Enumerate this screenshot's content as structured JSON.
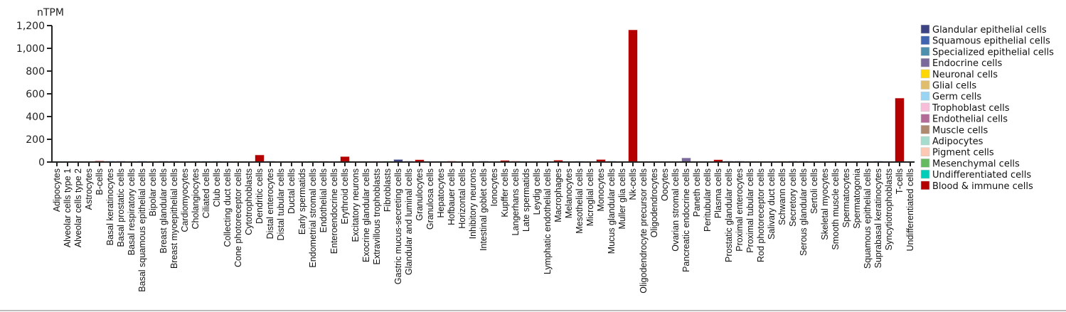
{
  "chart_data": {
    "type": "bar",
    "ylabel": "nTPM",
    "ylim": [
      0,
      1200
    ],
    "yticks": [
      0,
      200,
      400,
      600,
      800,
      1000,
      1200
    ],
    "ytick_labels": [
      "0",
      "200",
      "400",
      "600",
      "800",
      "1,000",
      "1,200"
    ],
    "grid": false,
    "legend_position": "right",
    "legend": [
      {
        "name": "Glandular epithelial cells",
        "color": "#3d4383"
      },
      {
        "name": "Squamous epithelial cells",
        "color": "#4064b0"
      },
      {
        "name": "Specialized epithelial cells",
        "color": "#4e8fad"
      },
      {
        "name": "Endocrine cells",
        "color": "#7a6a9c"
      },
      {
        "name": "Neuronal cells",
        "color": "#ffd700"
      },
      {
        "name": "Glial cells",
        "color": "#e0bd6c"
      },
      {
        "name": "Germ cells",
        "color": "#99d4f2"
      },
      {
        "name": "Trophoblast cells",
        "color": "#f7bdd9"
      },
      {
        "name": "Endothelial cells",
        "color": "#b36b98"
      },
      {
        "name": "Muscle cells",
        "color": "#b08a70"
      },
      {
        "name": "Adipocytes",
        "color": "#a6dcce"
      },
      {
        "name": "Pigment cells",
        "color": "#fdc9b5"
      },
      {
        "name": "Mesenchymal cells",
        "color": "#66bb62"
      },
      {
        "name": "Undifferentiated cells",
        "color": "#00cdb8"
      },
      {
        "name": "Blood & immune cells",
        "color": "#b50000"
      }
    ],
    "categories": [
      "Adipocytes",
      "Alveolar cells type 1",
      "Alveolar cells type 2",
      "Astrocytes",
      "B-cells",
      "Basal keratinocytes",
      "Basal prostatic cells",
      "Basal respiratory cells",
      "Basal squamous epithelial cells",
      "Bipolar cells",
      "Breast glandular cells",
      "Breast myoepithelial cells",
      "Cardiomyocytes",
      "Cholangiocytes",
      "Ciliated cells",
      "Club cells",
      "Collecting duct cells",
      "Cone photoreceptor cells",
      "Cytotrophoblasts",
      "Dendritic cells",
      "Distal enterocytes",
      "Distal tubular cells",
      "Ductal cells",
      "Early spermatids",
      "Endometrial stromal cells",
      "Endothelial cells",
      "Enteroendocrine cells",
      "Erythroid cells",
      "Excitatory neurons",
      "Exocrine glandular cells",
      "Extravillous trophoblasts",
      "Fibroblasts",
      "Gastric mucus-secreting cells",
      "Glandular and luminal cells",
      "Granulocytes",
      "Granulosa cells",
      "Hepatocytes",
      "Hofbauer cells",
      "Horizontal cells",
      "Inhibitory neurons",
      "Intestinal goblet cells",
      "Ionocytes",
      "Kupffer cells",
      "Langerhans cells",
      "Late spermatids",
      "Leydig cells",
      "Lymphatic endothelial cells",
      "Macrophages",
      "Melanocytes",
      "Mesothelial cells",
      "Microglial cells",
      "Monocytes",
      "Mucus glandular cells",
      "Muller glia cells",
      "Nk-cells",
      "Oligodendrocyte precursor cells",
      "Oligodendrocytes",
      "Oocytes",
      "Ovarian stromal cells",
      "Pancreatic endocrine cells",
      "Paneth cells",
      "Peritubular cells",
      "Plasma cells",
      "Prostatic glandular cells",
      "Proximal enterocytes",
      "Proximal tubular cells",
      "Rod photoreceptor cells",
      "Salivary duct cells",
      "Schwann cells",
      "Secretory cells",
      "Serous glandular cells",
      "Sertoli cells",
      "Skeletal myocytes",
      "Smooth muscle cells",
      "Spermatocytes",
      "Spermatogonia",
      "Squamous epithelial cells",
      "Suprabasal keratinocytes",
      "Syncytiotrophoblasts",
      "T-cells",
      "Undifferentiated cells"
    ],
    "values": [
      1,
      0,
      0,
      0,
      8,
      5,
      5,
      0,
      2,
      0,
      3,
      3,
      0,
      2,
      1,
      1,
      0,
      0,
      0,
      60,
      2,
      0,
      0,
      0,
      1,
      2,
      0,
      46,
      0,
      0,
      3,
      3,
      20,
      4,
      18,
      0,
      1,
      6,
      0,
      0,
      4,
      0,
      12,
      5,
      0,
      0,
      0,
      14,
      0,
      5,
      0,
      20,
      5,
      0,
      1160,
      0,
      0,
      0,
      0,
      34,
      0,
      0,
      18,
      2,
      5,
      0,
      0,
      0,
      4,
      1,
      5,
      0,
      0,
      4,
      0,
      0,
      0,
      1,
      0,
      560,
      0
    ],
    "groups": [
      "Adipocytes",
      "Specialized epithelial cells",
      "Specialized epithelial cells",
      "Glial cells",
      "Blood & immune cells",
      "Squamous epithelial cells",
      "Glandular epithelial cells",
      "Specialized epithelial cells",
      "Squamous epithelial cells",
      "Neuronal cells",
      "Glandular epithelial cells",
      "Glandular epithelial cells",
      "Muscle cells",
      "Specialized epithelial cells",
      "Specialized epithelial cells",
      "Specialized epithelial cells",
      "Specialized epithelial cells",
      "Neuronal cells",
      "Trophoblast cells",
      "Blood & immune cells",
      "Glandular epithelial cells",
      "Specialized epithelial cells",
      "Specialized epithelial cells",
      "Germ cells",
      "Mesenchymal cells",
      "Endothelial cells",
      "Endocrine cells",
      "Blood & immune cells",
      "Neuronal cells",
      "Glandular epithelial cells",
      "Trophoblast cells",
      "Mesenchymal cells",
      "Glandular epithelial cells",
      "Glandular epithelial cells",
      "Blood & immune cells",
      "Specialized epithelial cells",
      "Germ cells",
      "Blood & immune cells",
      "Neuronal cells",
      "Neuronal cells",
      "Glandular epithelial cells",
      "Specialized epithelial cells",
      "Blood & immune cells",
      "Blood & immune cells",
      "Germ cells",
      "Specialized epithelial cells",
      "Endothelial cells",
      "Blood & immune cells",
      "Pigment cells",
      "Specialized epithelial cells",
      "Blood & immune cells",
      "Blood & immune cells",
      "Glandular epithelial cells",
      "Glial cells",
      "Blood & immune cells",
      "Glial cells",
      "Glial cells",
      "Germ cells",
      "Mesenchymal cells",
      "Endocrine cells",
      "Glandular epithelial cells",
      "Mesenchymal cells",
      "Blood & immune cells",
      "Glandular epithelial cells",
      "Glandular epithelial cells",
      "Specialized epithelial cells",
      "Neuronal cells",
      "Specialized epithelial cells",
      "Glial cells",
      "Glandular epithelial cells",
      "Glandular epithelial cells",
      "Specialized epithelial cells",
      "Muscle cells",
      "Muscle cells",
      "Germ cells",
      "Germ cells",
      "Squamous epithelial cells",
      "Squamous epithelial cells",
      "Trophoblast cells",
      "Blood & immune cells",
      "Undifferentiated cells"
    ]
  }
}
